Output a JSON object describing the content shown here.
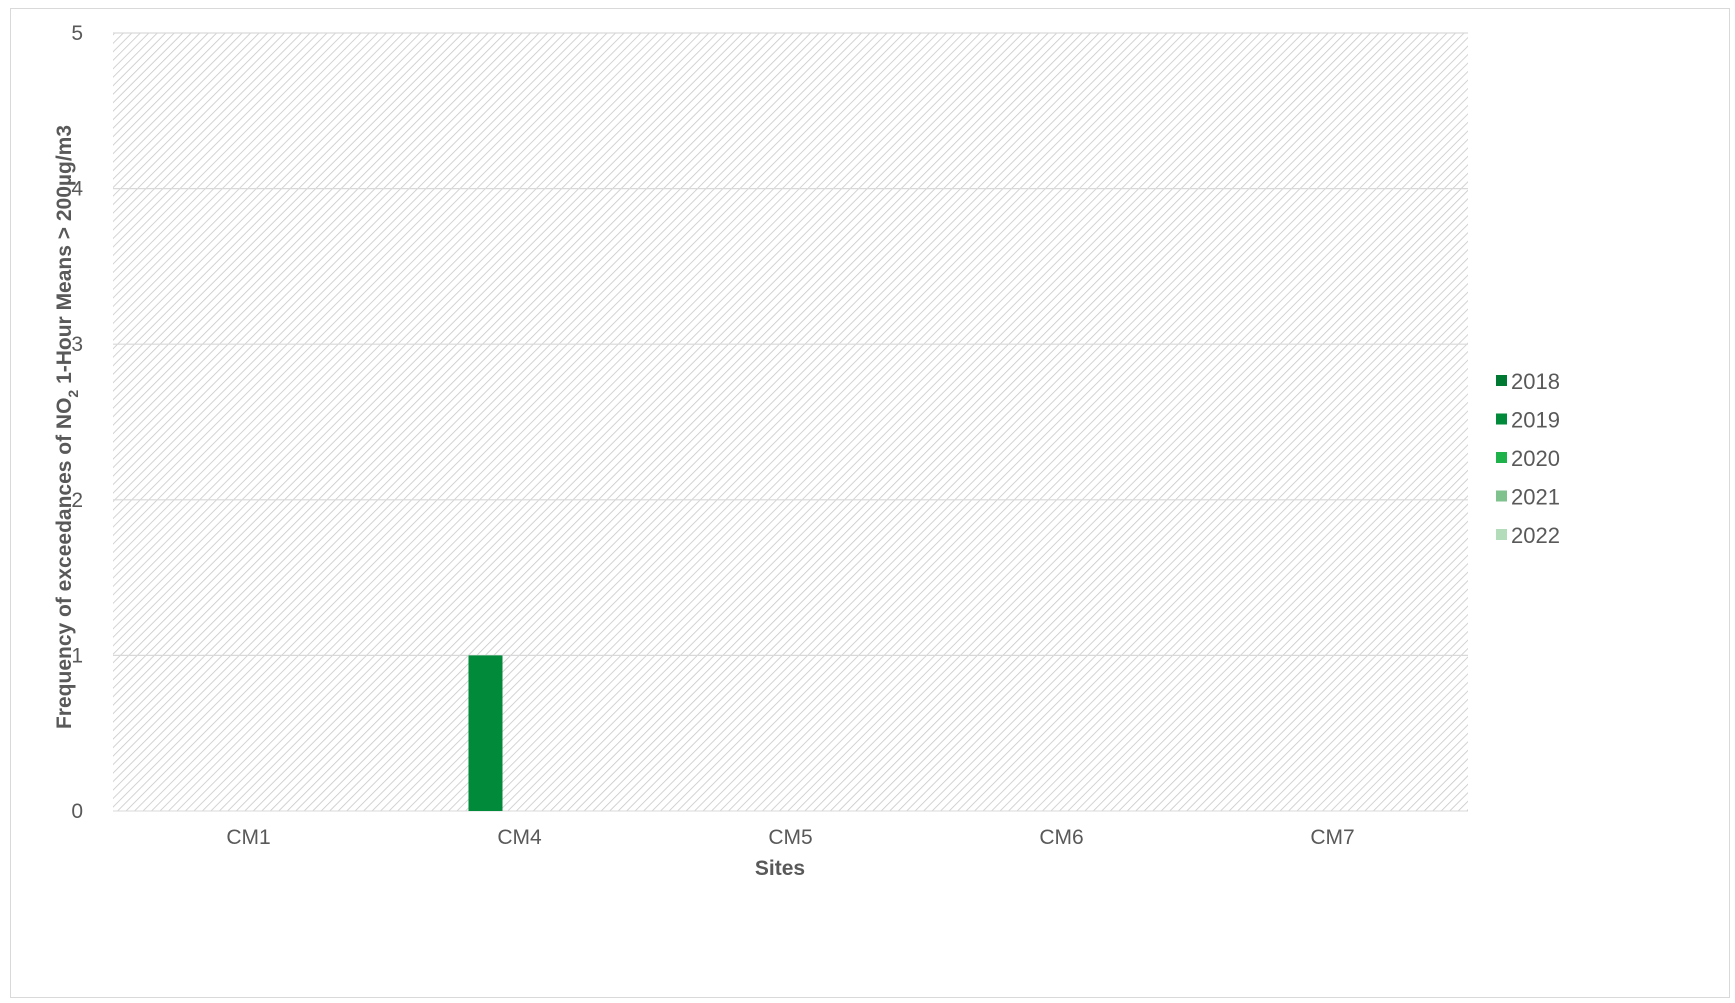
{
  "chart_data": {
    "type": "bar",
    "categories": [
      "CM1",
      "CM4",
      "CM5",
      "CM6",
      "CM7"
    ],
    "series": [
      {
        "name": "2018",
        "color": "#007a33",
        "values": [
          0,
          0,
          0,
          0,
          0
        ]
      },
      {
        "name": "2019",
        "color": "#008a3a",
        "values": [
          0,
          1,
          0,
          0,
          0
        ]
      },
      {
        "name": "2020",
        "color": "#1db34a",
        "values": [
          0,
          0,
          0,
          0,
          0
        ]
      },
      {
        "name": "2021",
        "color": "#7fc28e",
        "values": [
          0,
          0,
          0,
          0,
          0
        ]
      },
      {
        "name": "2022",
        "color": "#b3dcbb",
        "values": [
          0,
          0,
          0,
          0,
          0
        ]
      }
    ],
    "xlabel": "Sites",
    "ylabel": {
      "prefix": "Frequency of exceedances of NO",
      "subscript": "2",
      "suffix": " 1-Hour Means > 200µg/m3"
    },
    "ylim": [
      0,
      5
    ],
    "yticks": [
      "0",
      "1",
      "2",
      "3",
      "4",
      "5"
    ],
    "grid": true,
    "plot_background": "hatched",
    "legend_position": "right"
  }
}
